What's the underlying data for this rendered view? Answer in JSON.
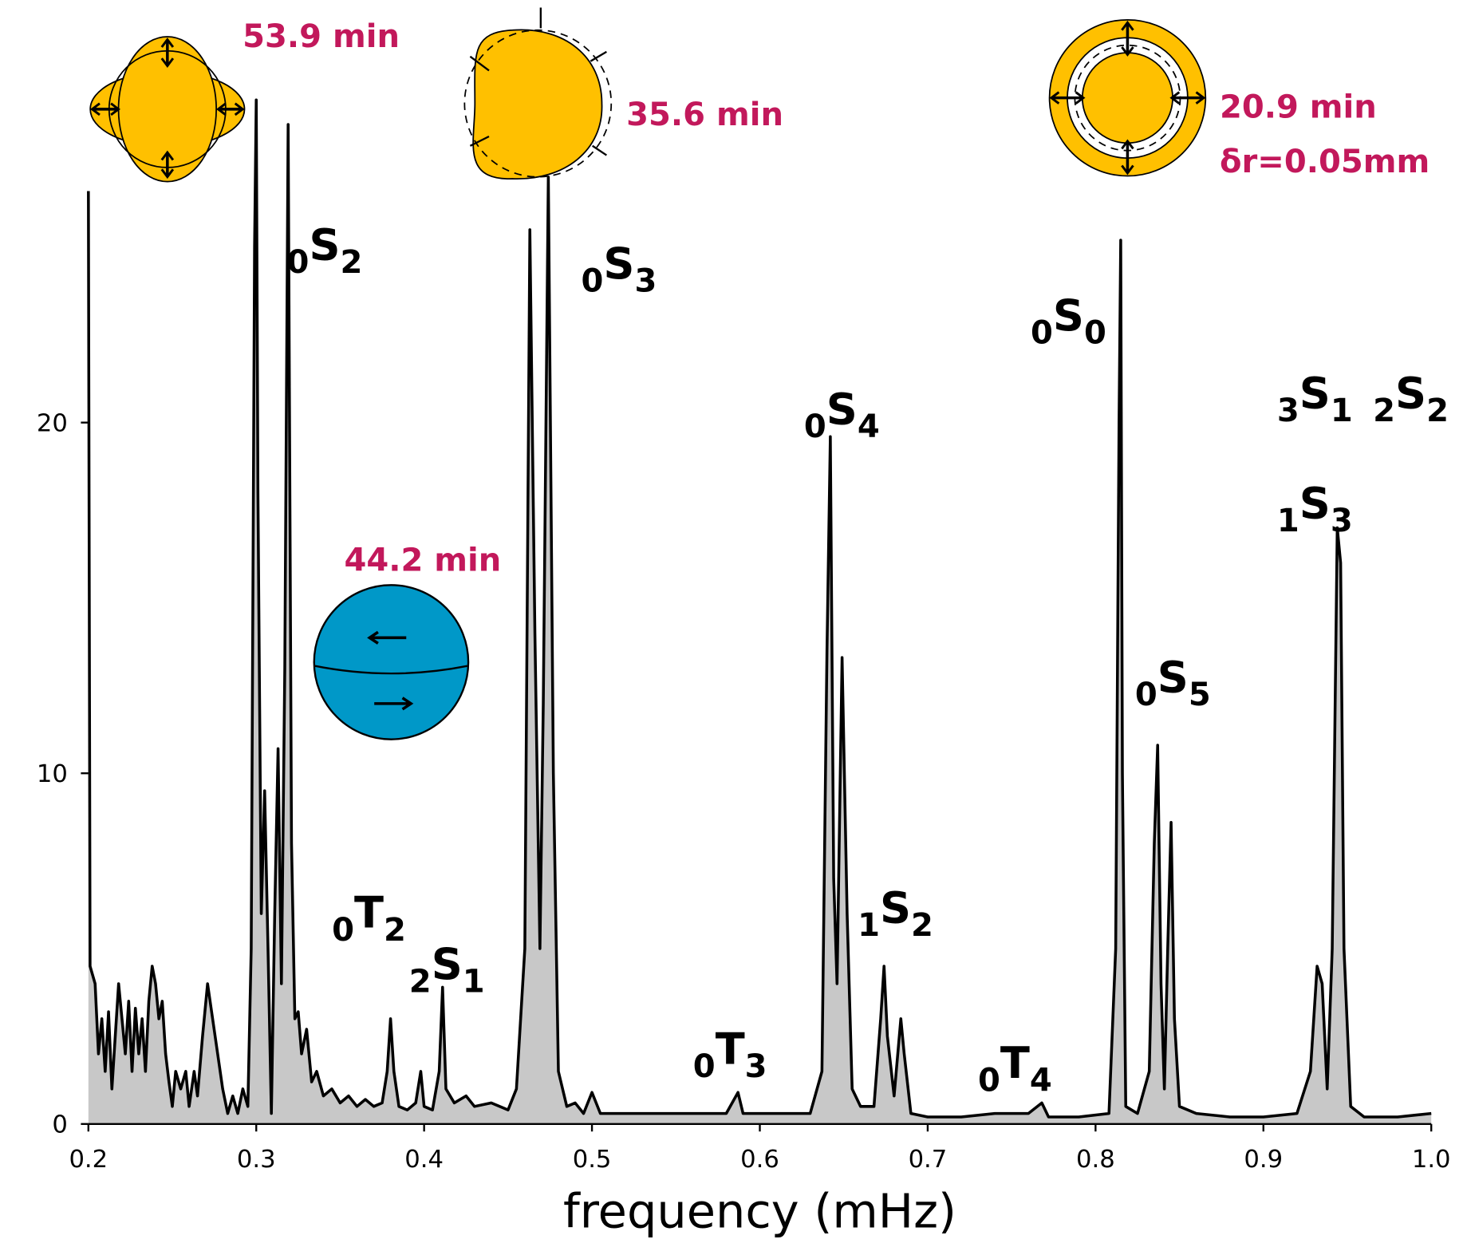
{
  "chart_data": {
    "type": "area",
    "x_label": "frequency (mHz)",
    "xlim": [
      0.2,
      1.0
    ],
    "ylim": [
      0,
      29.5
    ],
    "xticks": [
      0.2,
      0.3,
      0.4,
      0.5,
      0.6,
      0.7,
      0.8,
      0.9,
      {
        "value": 1.0,
        "label": "1.0"
      }
    ],
    "yticks": [
      0,
      10,
      20
    ],
    "color": "#c8c8c8",
    "line_color": "#000000",
    "x": [
      0.2,
      0.201,
      0.204,
      0.206,
      0.208,
      0.21,
      0.212,
      0.214,
      0.216,
      0.218,
      0.22,
      0.222,
      0.224,
      0.226,
      0.228,
      0.23,
      0.232,
      0.234,
      0.236,
      0.238,
      0.24,
      0.242,
      0.244,
      0.246,
      0.248,
      0.25,
      0.252,
      0.255,
      0.258,
      0.26,
      0.263,
      0.265,
      0.268,
      0.271,
      0.274,
      0.277,
      0.28,
      0.283,
      0.286,
      0.289,
      0.292,
      0.295,
      0.297,
      0.299,
      0.3,
      0.301,
      0.303,
      0.305,
      0.307,
      0.309,
      0.311,
      0.313,
      0.315,
      0.317,
      0.319,
      0.321,
      0.323,
      0.325,
      0.327,
      0.33,
      0.333,
      0.336,
      0.34,
      0.345,
      0.35,
      0.355,
      0.36,
      0.365,
      0.37,
      0.375,
      0.378,
      0.38,
      0.382,
      0.385,
      0.39,
      0.395,
      0.398,
      0.4,
      0.405,
      0.409,
      0.411,
      0.413,
      0.418,
      0.425,
      0.43,
      0.44,
      0.45,
      0.455,
      0.46,
      0.463,
      0.466,
      0.469,
      0.471,
      0.474,
      0.477,
      0.48,
      0.485,
      0.49,
      0.495,
      0.5,
      0.505,
      0.52,
      0.54,
      0.56,
      0.58,
      0.587,
      0.59,
      0.61,
      0.63,
      0.637,
      0.64,
      0.642,
      0.644,
      0.646,
      0.649,
      0.652,
      0.655,
      0.66,
      0.668,
      0.672,
      0.674,
      0.676,
      0.68,
      0.684,
      0.686,
      0.69,
      0.7,
      0.72,
      0.74,
      0.76,
      0.768,
      0.772,
      0.79,
      0.808,
      0.812,
      0.814,
      0.815,
      0.816,
      0.818,
      0.825,
      0.832,
      0.835,
      0.837,
      0.839,
      0.841,
      0.843,
      0.845,
      0.847,
      0.85,
      0.86,
      0.88,
      0.9,
      0.92,
      0.928,
      0.932,
      0.935,
      0.938,
      0.941,
      0.944,
      0.946,
      0.948,
      0.952,
      0.96,
      0.98,
      1.0
    ],
    "values": [
      26.6,
      4.5,
      4.0,
      2.0,
      3.0,
      1.5,
      3.2,
      1.0,
      2.5,
      4.0,
      3.0,
      2.0,
      3.5,
      1.5,
      3.3,
      2.0,
      3.0,
      1.5,
      3.5,
      4.5,
      4.0,
      3.0,
      3.5,
      2.0,
      1.2,
      0.5,
      1.5,
      1.0,
      1.5,
      0.5,
      1.5,
      0.8,
      2.5,
      4.0,
      3.0,
      2.0,
      1.0,
      0.3,
      0.8,
      0.3,
      1.0,
      0.5,
      5,
      25,
      29.2,
      18,
      6,
      9.5,
      5,
      0.3,
      6,
      10.7,
      4,
      13,
      28.5,
      8,
      3,
      3.2,
      2,
      2.7,
      1.2,
      1.5,
      0.8,
      1.0,
      0.6,
      0.8,
      0.5,
      0.7,
      0.5,
      0.6,
      1.5,
      3.0,
      1.5,
      0.5,
      0.4,
      0.6,
      1.5,
      0.5,
      0.4,
      1.5,
      3.9,
      1.0,
      0.6,
      0.8,
      0.5,
      0.6,
      0.4,
      1.0,
      5,
      25.5,
      14,
      5,
      12,
      27,
      10,
      1.5,
      0.5,
      0.6,
      0.3,
      0.9,
      0.3,
      0.3,
      0.3,
      0.3,
      0.3,
      0.9,
      0.3,
      0.3,
      0.3,
      1.5,
      13.5,
      19.6,
      7,
      4,
      13.3,
      6,
      1.0,
      0.5,
      0.5,
      3.0,
      4.5,
      2.5,
      0.8,
      3.0,
      2.0,
      0.3,
      0.2,
      0.2,
      0.3,
      0.3,
      0.6,
      0.2,
      0.2,
      0.3,
      5,
      20,
      25.2,
      10,
      0.5,
      0.3,
      1.5,
      8,
      10.8,
      4,
      1.0,
      5,
      8.6,
      3,
      0.5,
      0.3,
      0.2,
      0.2,
      0.3,
      1.5,
      4.5,
      4.0,
      1.0,
      5,
      17,
      16,
      5,
      0.5,
      0.2,
      0.2,
      0.3
    ],
    "mode_labels": [
      {
        "order": "0",
        "kind": "S",
        "degree": "2"
      },
      {
        "order": "0",
        "kind": "S",
        "degree": "3"
      },
      {
        "order": "0",
        "kind": "S",
        "degree": "0"
      },
      {
        "order": "3",
        "kind": "S",
        "degree": "1"
      },
      {
        "order": "2",
        "kind": "S",
        "degree": "2"
      },
      {
        "order": "0",
        "kind": "S",
        "degree": "4"
      },
      {
        "order": "1",
        "kind": "S",
        "degree": "3"
      },
      {
        "order": "0",
        "kind": "S",
        "degree": "5"
      },
      {
        "order": "0",
        "kind": "T",
        "degree": "2"
      },
      {
        "order": "1",
        "kind": "S",
        "degree": "2"
      },
      {
        "order": "2",
        "kind": "S",
        "degree": "1"
      },
      {
        "order": "0",
        "kind": "T",
        "degree": "3"
      },
      {
        "order": "0",
        "kind": "T",
        "degree": "4"
      }
    ],
    "annotations": [
      "53.9 min",
      "35.6 min",
      "44.2 min",
      "20.9 min",
      "δr=0.05mm"
    ]
  }
}
